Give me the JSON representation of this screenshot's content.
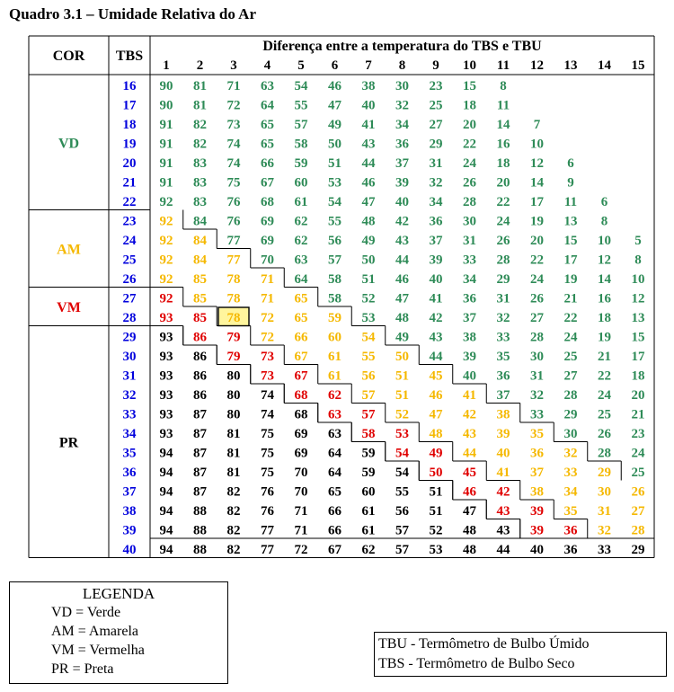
{
  "title": "Quadro 3.1 – Umidade Relativa do Ar",
  "header": {
    "cor": "COR",
    "tbs": "TBS",
    "diff": "Diferença entre a temperatura do TBS e TBU"
  },
  "diff_columns": [
    "1",
    "2",
    "3",
    "4",
    "5",
    "6",
    "7",
    "8",
    "9",
    "10",
    "11",
    "12",
    "13",
    "14",
    "15"
  ],
  "colors": {
    "VD": "#2e8b57",
    "AM": "#f5b800",
    "VM": "#e00000",
    "PR": "#000000",
    "tbs": "#0000dd",
    "highlight": "#fff59d"
  },
  "groups": [
    {
      "code": "VD",
      "color": "VD",
      "from": 0,
      "to": 6
    },
    {
      "code": "AM",
      "color": "AM",
      "from": 7,
      "to": 10
    },
    {
      "code": "VM",
      "color": "VM",
      "from": 11,
      "to": 12
    },
    {
      "code": "PR",
      "color": "PR",
      "from": 13,
      "to": 24
    }
  ],
  "rows": [
    {
      "tbs": "16",
      "vals": [
        "90",
        "81",
        "71",
        "63",
        "54",
        "46",
        "38",
        "30",
        "23",
        "15",
        "8"
      ],
      "cols": "VVVVVVVVVVV"
    },
    {
      "tbs": "17",
      "vals": [
        "90",
        "81",
        "72",
        "64",
        "55",
        "47",
        "40",
        "32",
        "25",
        "18",
        "11"
      ],
      "cols": "VVVVVVVVVVV"
    },
    {
      "tbs": "18",
      "vals": [
        "91",
        "82",
        "73",
        "65",
        "57",
        "49",
        "41",
        "34",
        "27",
        "20",
        "14",
        "7"
      ],
      "cols": "VVVVVVVVVVVV"
    },
    {
      "tbs": "19",
      "vals": [
        "91",
        "82",
        "74",
        "65",
        "58",
        "50",
        "43",
        "36",
        "29",
        "22",
        "16",
        "10"
      ],
      "cols": "VVVVVVVVVVVV"
    },
    {
      "tbs": "20",
      "vals": [
        "91",
        "83",
        "74",
        "66",
        "59",
        "51",
        "44",
        "37",
        "31",
        "24",
        "18",
        "12",
        "6"
      ],
      "cols": "VVVVVVVVVVVVV"
    },
    {
      "tbs": "21",
      "vals": [
        "91",
        "83",
        "75",
        "67",
        "60",
        "53",
        "46",
        "39",
        "32",
        "26",
        "20",
        "14",
        "9"
      ],
      "cols": "VVVVVVVVVVVVV"
    },
    {
      "tbs": "22",
      "vals": [
        "92",
        "83",
        "76",
        "68",
        "61",
        "54",
        "47",
        "40",
        "34",
        "28",
        "22",
        "17",
        "11",
        "6"
      ],
      "cols": "VVVVVVVVVVVVVV"
    },
    {
      "tbs": "23",
      "vals": [
        "92",
        "84",
        "76",
        "69",
        "62",
        "55",
        "48",
        "42",
        "36",
        "30",
        "24",
        "19",
        "13",
        "8"
      ],
      "cols": "AVVVVVVVVVVVVV"
    },
    {
      "tbs": "24",
      "vals": [
        "92",
        "84",
        "77",
        "69",
        "62",
        "56",
        "49",
        "43",
        "37",
        "31",
        "26",
        "20",
        "15",
        "10",
        "5"
      ],
      "cols": "AAVVVVVVVVVVVVV"
    },
    {
      "tbs": "25",
      "vals": [
        "92",
        "84",
        "77",
        "70",
        "63",
        "57",
        "50",
        "44",
        "39",
        "33",
        "28",
        "22",
        "17",
        "12",
        "8"
      ],
      "cols": "AAAVVVVVVVVVVVV"
    },
    {
      "tbs": "26",
      "vals": [
        "92",
        "85",
        "78",
        "71",
        "64",
        "58",
        "51",
        "46",
        "40",
        "34",
        "29",
        "24",
        "19",
        "14",
        "10"
      ],
      "cols": "AAAAVVVVVVVVVVV"
    },
    {
      "tbs": "27",
      "vals": [
        "92",
        "85",
        "78",
        "71",
        "65",
        "58",
        "52",
        "47",
        "41",
        "36",
        "31",
        "26",
        "21",
        "16",
        "12"
      ],
      "cols": "RAAAAVVVVVVVVVV"
    },
    {
      "tbs": "28",
      "vals": [
        "93",
        "85",
        "78",
        "72",
        "65",
        "59",
        "53",
        "48",
        "42",
        "37",
        "32",
        "27",
        "22",
        "18",
        "13"
      ],
      "cols": "RRAAAAVVVVVVVVV"
    },
    {
      "tbs": "29",
      "vals": [
        "93",
        "86",
        "79",
        "72",
        "66",
        "60",
        "54",
        "49",
        "43",
        "38",
        "33",
        "28",
        "24",
        "19",
        "15"
      ],
      "cols": "PRRAAAAVVVVVVVV"
    },
    {
      "tbs": "30",
      "vals": [
        "93",
        "86",
        "79",
        "73",
        "67",
        "61",
        "55",
        "50",
        "44",
        "39",
        "35",
        "30",
        "25",
        "21",
        "17"
      ],
      "cols": "PPRRAAAAVVVVVVV"
    },
    {
      "tbs": "31",
      "vals": [
        "93",
        "86",
        "80",
        "73",
        "67",
        "61",
        "56",
        "51",
        "45",
        "40",
        "36",
        "31",
        "27",
        "22",
        "18"
      ],
      "cols": "PPPRRAAAAVVVVVV"
    },
    {
      "tbs": "32",
      "vals": [
        "93",
        "86",
        "80",
        "74",
        "68",
        "62",
        "57",
        "51",
        "46",
        "41",
        "37",
        "32",
        "28",
        "24",
        "20"
      ],
      "cols": "PPPPRRAAAAVVVVV"
    },
    {
      "tbs": "33",
      "vals": [
        "93",
        "87",
        "80",
        "74",
        "68",
        "63",
        "57",
        "52",
        "47",
        "42",
        "38",
        "33",
        "29",
        "25",
        "21"
      ],
      "cols": "PPPPPRRAAAAVVVV"
    },
    {
      "tbs": "34",
      "vals": [
        "93",
        "87",
        "81",
        "75",
        "69",
        "63",
        "58",
        "53",
        "48",
        "43",
        "39",
        "35",
        "30",
        "26",
        "23"
      ],
      "cols": "PPPPPPRRAAAAVVV"
    },
    {
      "tbs": "35",
      "vals": [
        "94",
        "87",
        "81",
        "75",
        "69",
        "64",
        "59",
        "54",
        "49",
        "44",
        "40",
        "36",
        "32",
        "28",
        "24"
      ],
      "cols": "PPPPPPPRRAAAAVV"
    },
    {
      "tbs": "36",
      "vals": [
        "94",
        "87",
        "81",
        "75",
        "70",
        "64",
        "59",
        "54",
        "50",
        "45",
        "41",
        "37",
        "33",
        "29",
        "25"
      ],
      "cols": "PPPPPPPPRRAAAAV"
    },
    {
      "tbs": "37",
      "vals": [
        "94",
        "87",
        "82",
        "76",
        "70",
        "65",
        "60",
        "55",
        "51",
        "46",
        "42",
        "38",
        "34",
        "30",
        "26"
      ],
      "cols": "PPPPPPPPPRRAAAA"
    },
    {
      "tbs": "38",
      "vals": [
        "94",
        "88",
        "82",
        "76",
        "71",
        "66",
        "61",
        "56",
        "51",
        "47",
        "43",
        "39",
        "35",
        "31",
        "27"
      ],
      "cols": "PPPPPPPPPPRRAAA"
    },
    {
      "tbs": "39",
      "vals": [
        "94",
        "88",
        "82",
        "77",
        "71",
        "66",
        "61",
        "57",
        "52",
        "48",
        "43",
        "39",
        "36",
        "32",
        "28"
      ],
      "cols": "PPPPPPPPPPPRRAA"
    },
    {
      "tbs": "40",
      "vals": [
        "94",
        "88",
        "82",
        "77",
        "72",
        "67",
        "62",
        "57",
        "53",
        "48",
        "44",
        "40",
        "36",
        "33",
        "29"
      ],
      "cols": "PPPPPPPPPPPPPPP"
    }
  ],
  "highlight_cell": {
    "row": 12,
    "col": 2
  },
  "legend": {
    "title": "LEGENDA",
    "items": [
      {
        "code": "VD",
        "label": "Verde"
      },
      {
        "code": "AM",
        "label": "Amarela"
      },
      {
        "code": "VM",
        "label": "Vermelha"
      },
      {
        "code": "PR",
        "label": "Preta"
      }
    ]
  },
  "abbreviations": [
    "TBU - Termômetro de Bulbo Úmido",
    "TBS - Termômetro de Bulbo Seco"
  ]
}
